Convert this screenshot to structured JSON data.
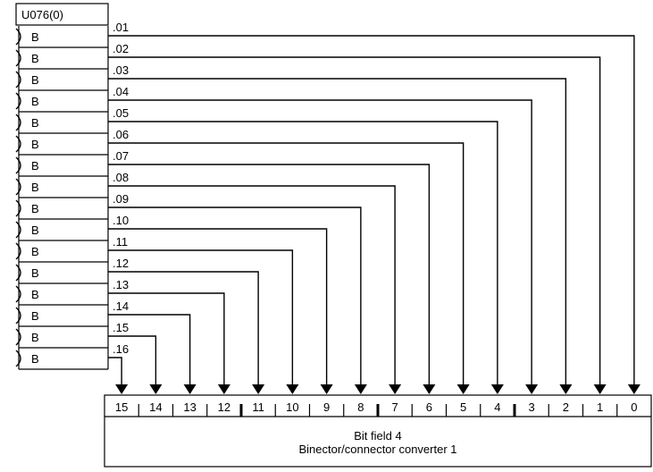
{
  "parameter": {
    "name": "U076(0)",
    "connector_type": "B"
  },
  "index_labels": [
    ".01",
    ".02",
    ".03",
    ".04",
    ".05",
    ".06",
    ".07",
    ".08",
    ".09",
    ".10",
    ".11",
    ".12",
    ".13",
    ".14",
    ".15",
    ".16"
  ],
  "bit_labels": [
    "15",
    "14",
    "13",
    "12",
    "11",
    "10",
    "9",
    "8",
    "7",
    "6",
    "5",
    "4",
    "3",
    "2",
    "1",
    "0"
  ],
  "block": {
    "title_line1": "Bit field 4",
    "title_line2": "Binector/connector converter 1"
  }
}
